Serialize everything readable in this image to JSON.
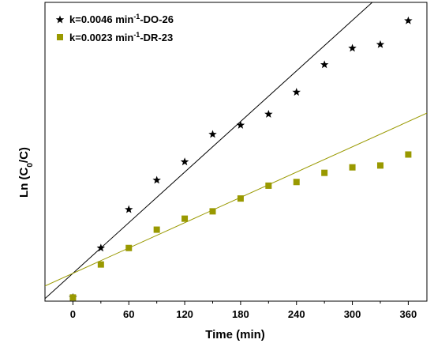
{
  "chart_data": {
    "type": "scatter",
    "xlabel": "Time (min)",
    "ylabel_parts": {
      "main": "Ln (C",
      "sub": "0",
      "end": "/C)"
    },
    "xlim": [
      -30,
      380
    ],
    "ylim": [
      -0.02,
      1.61
    ],
    "x_ticks": [
      0,
      60,
      120,
      180,
      240,
      300,
      360
    ],
    "x_tick_labels": [
      "0",
      "60",
      "120",
      "180",
      "240",
      "300",
      "360"
    ],
    "grid": false,
    "legend_placement": "top-left",
    "series": [
      {
        "name": "k=0.0046 min-1-DO-26",
        "legend": {
          "pre": "k=0.0046 min",
          "sup": "-1",
          "post": "-DO-26"
        },
        "marker": "star",
        "color": "#000000",
        "x": [
          0,
          30,
          60,
          90,
          120,
          150,
          180,
          210,
          240,
          270,
          300,
          330,
          360
        ],
        "y": [
          0.0,
          0.27,
          0.48,
          0.64,
          0.74,
          0.89,
          0.94,
          1.0,
          1.12,
          1.27,
          1.36,
          1.38,
          1.51
        ],
        "fit": {
          "slope": 0.0046,
          "intercept": 0.132
        }
      },
      {
        "name": "k=0.0023 min-1-DR-23",
        "legend": {
          "pre": "k=0.0023 min",
          "sup": "-1",
          "post": "-DR-23"
        },
        "marker": "square",
        "color": "#999900",
        "x": [
          0,
          30,
          60,
          90,
          120,
          150,
          180,
          210,
          240,
          270,
          300,
          330,
          360
        ],
        "y": [
          0.0,
          0.18,
          0.27,
          0.37,
          0.43,
          0.47,
          0.54,
          0.61,
          0.63,
          0.68,
          0.71,
          0.72,
          0.78
        ],
        "fit": {
          "slope": 0.0023,
          "intercept": 0.132
        }
      }
    ]
  }
}
